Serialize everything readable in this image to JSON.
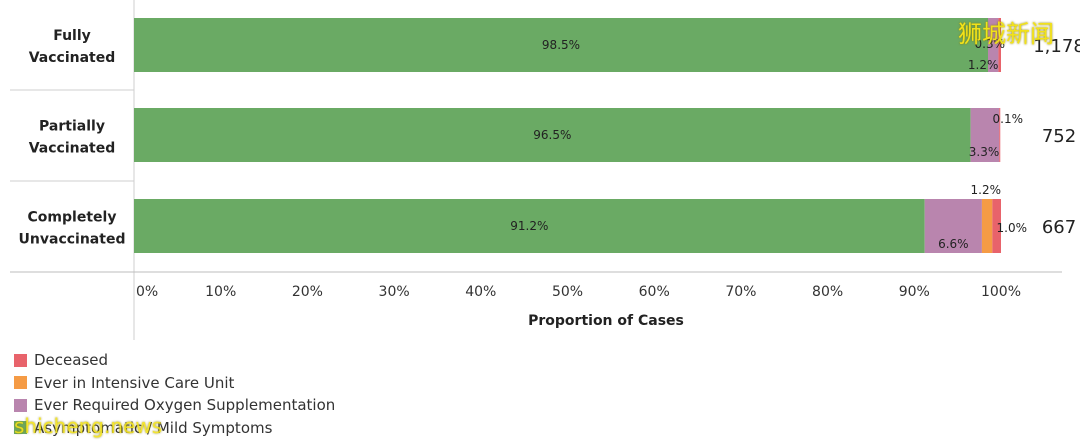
{
  "chart_data": {
    "type": "bar",
    "orientation": "horizontal",
    "stacked": true,
    "xlabel": "Proportion of Cases",
    "xlim": [
      0,
      100
    ],
    "xticks": [
      "0%",
      "10%",
      "20%",
      "30%",
      "40%",
      "50%",
      "60%",
      "70%",
      "80%",
      "90%",
      "100%"
    ],
    "categories": [
      {
        "name": "Fully Vaccinated",
        "lines": [
          "Fully",
          "Vaccinated"
        ],
        "total": "1,178"
      },
      {
        "name": "Partially Vaccinated",
        "lines": [
          "Partially",
          "Vaccinated"
        ],
        "total": "752"
      },
      {
        "name": "Completely Unvaccinated",
        "lines": [
          "Completely",
          "Unvaccinated"
        ],
        "total": "667"
      }
    ],
    "series": [
      {
        "name": "Asymptomatic / Mild Symptoms",
        "color": "#6aaa64",
        "values": [
          98.5,
          96.5,
          91.2
        ],
        "labels": [
          "98.5%",
          "96.5%",
          "91.2%"
        ]
      },
      {
        "name": "Ever Required Oxygen Supplementation",
        "color": "#b985ae",
        "values": [
          1.2,
          3.3,
          6.6
        ],
        "labels": [
          "1.2%",
          "3.3%",
          "6.6%"
        ]
      },
      {
        "name": "Ever in Intensive Care Unit",
        "color": "#f59b45",
        "values": [
          0,
          0,
          1.2
        ],
        "labels": [
          "",
          "",
          "1.2%"
        ]
      },
      {
        "name": "Deceased",
        "color": "#e8636b",
        "values": [
          0.3,
          0.1,
          1.0
        ],
        "labels": [
          "0.3%",
          "0.1%",
          "1.0%"
        ]
      }
    ],
    "legend": [
      "Deceased",
      "Ever in Intensive Care Unit",
      "Ever Required Oxygen Supplementation",
      "Asymptomatic / Mild Symptoms"
    ],
    "legend_colors": [
      "#e8636b",
      "#f59b45",
      "#b985ae",
      "#6aaa64"
    ],
    "legend_position": "bottom-left"
  },
  "watermarks": {
    "chinese": "狮城新闻",
    "url": "shicheng.news"
  }
}
